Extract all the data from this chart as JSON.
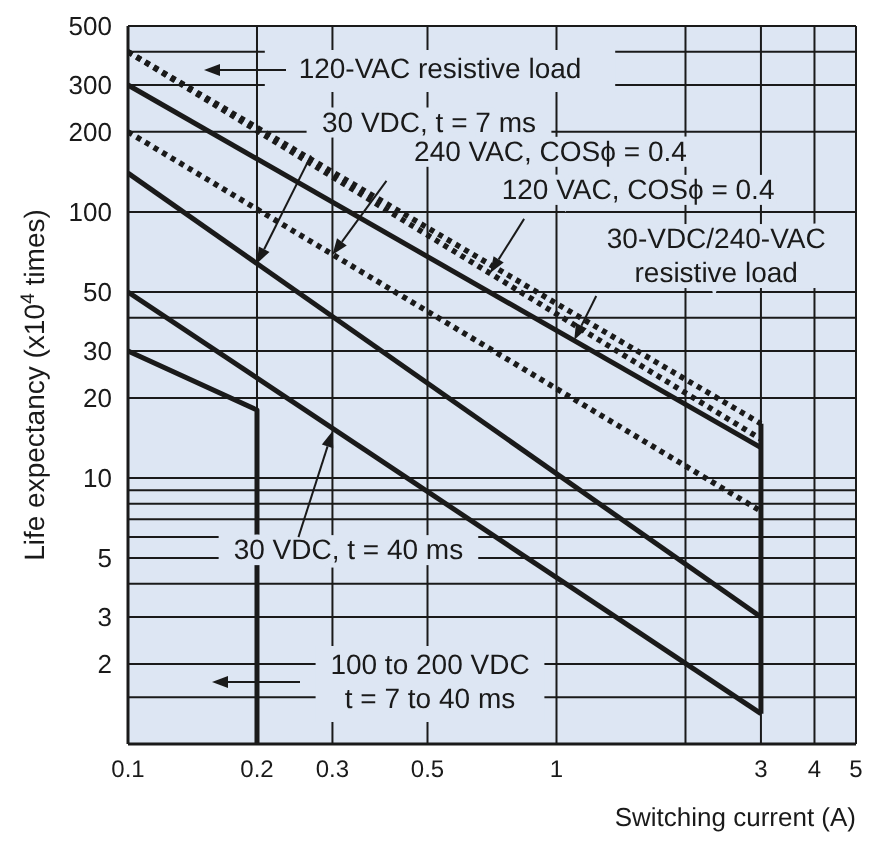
{
  "chart_data": {
    "type": "line",
    "ylabel": "Life expectancy (x10$^{4}$ times)",
    "xlabel": "Switching current (A)",
    "log": "xy",
    "grid": true,
    "marker": "none",
    "xlim": [
      0.1,
      5
    ],
    "xticks": [
      0.1,
      0.2,
      0.3,
      0.5,
      1,
      {
        "value": 2,
        "label": null
      },
      3,
      4,
      5
    ],
    "ylim": [
      1,
      500
    ],
    "yticks": [
      {
        "value": 1.5,
        "label": null
      },
      2,
      3,
      {
        "value": 4,
        "label": null
      },
      5,
      {
        "value": 6,
        "label": null
      },
      {
        "value": 7,
        "label": null
      },
      {
        "value": 8,
        "label": null
      },
      {
        "value": 9,
        "label": null
      },
      10,
      20,
      30,
      {
        "value": 40,
        "label": null
      },
      50,
      100,
      200,
      300,
      {
        "value": 400,
        "label": null
      },
      500
    ],
    "series": [
      {
        "color": "#1a1a1a",
        "line_style": "dotted",
        "x": [
          0.1,
          3
        ],
        "values": [
          400,
          16
        ]
      },
      {
        "color": "#1a1a1a",
        "line_style": "dotted",
        "x": [
          0.1,
          3
        ],
        "values": [
          400,
          14
        ]
      },
      {
        "color": "#1a1a1a",
        "line_style": "solid",
        "x": [
          0.1,
          3
        ],
        "values": [
          300,
          13
        ]
      },
      {
        "color": "#1a1a1a",
        "line_style": "dotted",
        "x": [
          0.1,
          3
        ],
        "values": [
          200,
          7.5
        ]
      },
      {
        "color": "#1a1a1a",
        "line_style": "solid",
        "x": [
          0.1,
          3
        ],
        "values": [
          140,
          3
        ]
      },
      {
        "color": "#1a1a1a",
        "line_style": "solid",
        "x": [
          0.1,
          3
        ],
        "values": [
          50,
          1.3
        ]
      },
      {
        "color": "#1a1a1a",
        "line_style": "solid",
        "x": [
          0.1,
          0.2,
          0.2
        ],
        "values": [
          30,
          18,
          1
        ]
      },
      {
        "color": "#1a1a1a",
        "line_style": "solid",
        "x": [
          3,
          3
        ],
        "values": [
          16,
          1.3
        ]
      }
    ],
    "annotations": [
      "120-VAC resistive load",
      {
        "text": "120 VAC, COSϕ = 0.4",
        "x": 0.7,
        "y": 59
      },
      {
        "text": "30-VDC/240-VAC\nresistive load",
        "x": 1.1,
        "y": 33
      },
      {
        "text": "240 VAC, COSϕ = 0.4",
        "x": 0.3,
        "y": 69
      },
      {
        "text": "30 VDC, t = 7 ms",
        "x": 0.2,
        "y": 64
      },
      {
        "text": "30 VDC, t = 40 ms",
        "x": 0.3,
        "y": 15
      },
      "100 to 200 VDC\nt = 7 to 40 ms"
    ]
  }
}
